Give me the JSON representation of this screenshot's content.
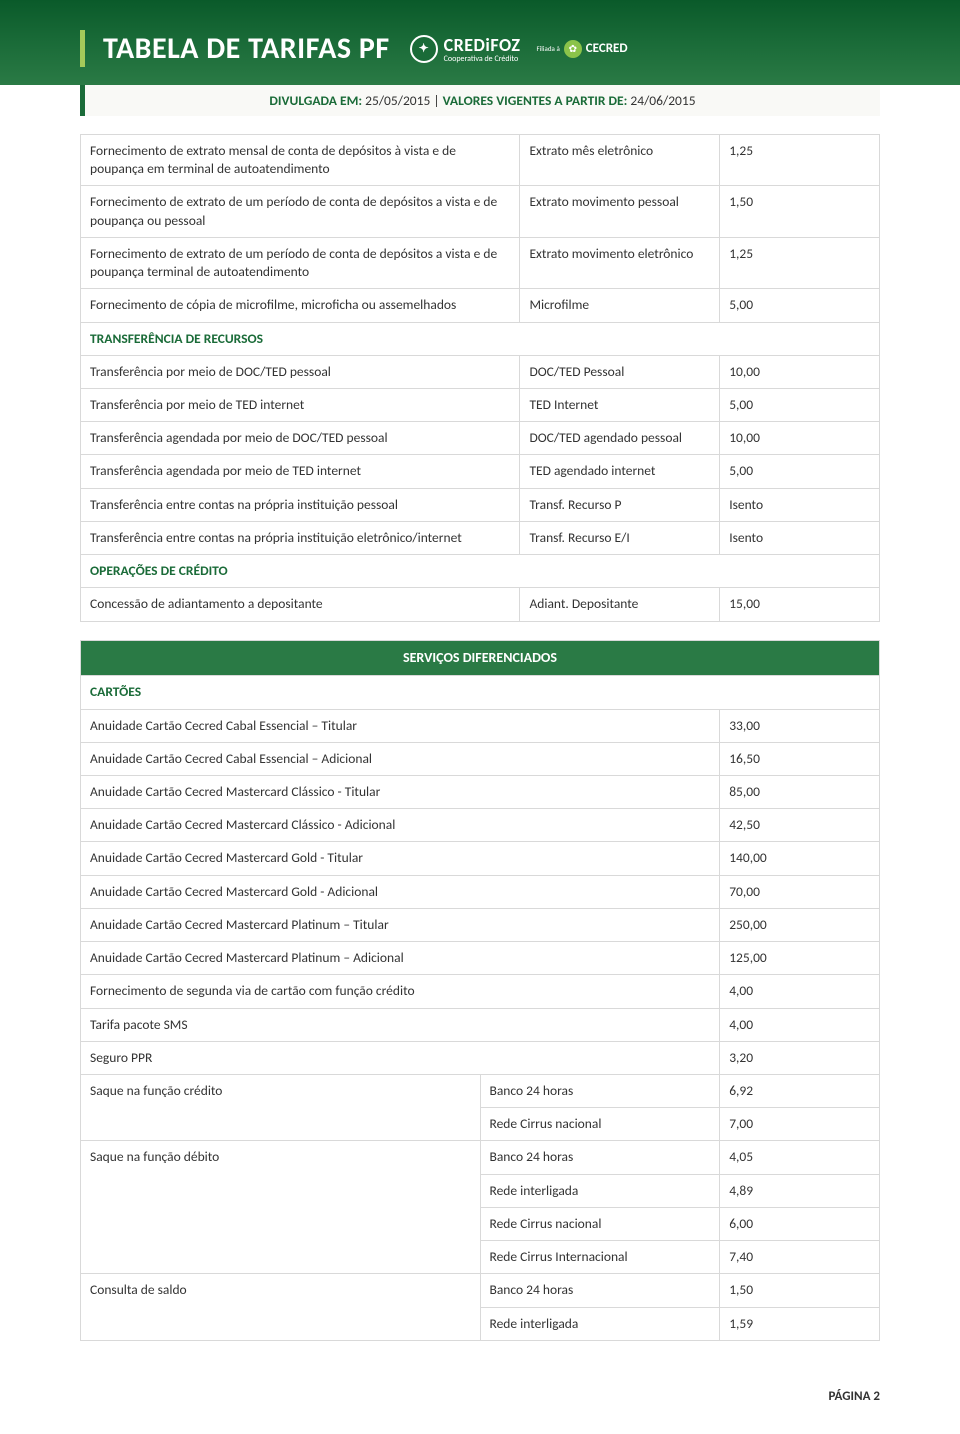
{
  "header": {
    "title": "TABELA DE TARIFAS PF",
    "logo1_main": "CREDiFOZ",
    "logo1_sub": "Cooperativa de Crédito",
    "logo2": "CECRED",
    "logo2_pre": "Filiada à"
  },
  "subheader": {
    "label1": "DIVULGADA EM:",
    "date1": "25/05/2015",
    "sep": " | ",
    "label2": "VALORES VIGENTES A PARTIR DE:",
    "date2": "24/06/2015"
  },
  "table1": {
    "rows": [
      {
        "desc": "Fornecimento de extrato mensal de conta de depósitos à vista e de poupança em terminal de autoatendimento",
        "mid": "Extrato mês eletrônico",
        "val": "1,25"
      },
      {
        "desc": "Fornecimento de extrato de um período de conta de depósitos a vista e de poupança ou pessoal",
        "mid": "Extrato movimento pessoal",
        "val": "1,50"
      },
      {
        "desc": "Fornecimento de extrato de um período de conta de depósitos a vista e de poupança terminal de autoatendimento",
        "mid": "Extrato movimento eletrônico",
        "val": "1,25"
      },
      {
        "desc": "Fornecimento de cópia de microfilme, microficha ou assemelhados",
        "mid": "Microfilme",
        "val": "5,00"
      }
    ],
    "section1": "TRANSFERÊNCIA DE RECURSOS",
    "rows2": [
      {
        "desc": "Transferência por meio de DOC/TED pessoal",
        "mid": "DOC/TED Pessoal",
        "val": "10,00"
      },
      {
        "desc": "Transferência por meio de TED internet",
        "mid": "TED Internet",
        "val": "5,00"
      },
      {
        "desc": "Transferência agendada por meio de DOC/TED pessoal",
        "mid": "DOC/TED agendado pessoal",
        "val": "10,00"
      },
      {
        "desc": "Transferência agendada por meio de TED internet",
        "mid": "TED agendado internet",
        "val": "5,00"
      },
      {
        "desc": "Transferência entre contas na própria instituição pessoal",
        "mid": "Transf. Recurso P",
        "val": "Isento"
      },
      {
        "desc": "Transferência entre contas na própria instituição eletrônico/internet",
        "mid": "Transf. Recurso E/I",
        "val": "Isento"
      }
    ],
    "section2": "OPERAÇÕES DE CRÉDITO",
    "rows3": [
      {
        "desc": "Concessão de adiantamento a depositante",
        "mid": "Adiant. Depositante",
        "val": "15,00"
      }
    ]
  },
  "table2": {
    "header": "SERVIÇOS DIFERENCIADOS",
    "section": "CARTÕES",
    "rows_2col": [
      {
        "desc": "Anuidade Cartão Cecred Cabal Essencial – Titular",
        "val": "33,00"
      },
      {
        "desc": "Anuidade Cartão Cecred Cabal Essencial – Adicional",
        "val": "16,50"
      },
      {
        "desc": "Anuidade Cartão Cecred Mastercard Clássico - Titular",
        "val": "85,00"
      },
      {
        "desc": "Anuidade Cartão Cecred Mastercard Clássico - Adicional",
        "val": "42,50"
      },
      {
        "desc": "Anuidade Cartão Cecred Mastercard Gold - Titular",
        "val": "140,00"
      },
      {
        "desc": "Anuidade Cartão Cecred Mastercard Gold - Adicional",
        "val": "70,00"
      },
      {
        "desc": "Anuidade Cartão Cecred Mastercard Platinum – Titular",
        "val": "250,00"
      },
      {
        "desc": "Anuidade Cartão Cecred Mastercard Platinum – Adicional",
        "val": "125,00"
      },
      {
        "desc": "Fornecimento de segunda via de cartão com função crédito",
        "val": "4,00"
      },
      {
        "desc": "Tarifa pacote SMS",
        "val": "4,00"
      },
      {
        "desc": "Seguro PPR",
        "val": "3,20"
      }
    ],
    "group1": {
      "desc": "Saque na função crédito",
      "rows": [
        {
          "mid": "Banco 24 horas",
          "val": "6,92"
        },
        {
          "mid": "Rede Cirrus nacional",
          "val": "7,00"
        }
      ]
    },
    "group2": {
      "desc": "Saque na função débito",
      "rows": [
        {
          "mid": "Banco 24 horas",
          "val": "4,05"
        },
        {
          "mid": "Rede interligada",
          "val": "4,89"
        },
        {
          "mid": "Rede Cirrus nacional",
          "val": "6,00"
        },
        {
          "mid": "Rede Cirrus Internacional",
          "val": "7,40"
        }
      ]
    },
    "group3": {
      "desc": "Consulta de saldo",
      "rows": [
        {
          "mid": "Banco 24 horas",
          "val": "1,50"
        },
        {
          "mid": "Rede interligada",
          "val": "1,59"
        }
      ]
    }
  },
  "footer": "PÁGINA 2",
  "colors": {
    "header_grad_top": "#0a5a2a",
    "header_grad_bot": "#2a7a45",
    "accent_green": "#1a6b38",
    "lime": "#a5c95a",
    "border": "#d9d9d9",
    "subheader_bg": "#f9f9f6",
    "text": "#333333"
  }
}
